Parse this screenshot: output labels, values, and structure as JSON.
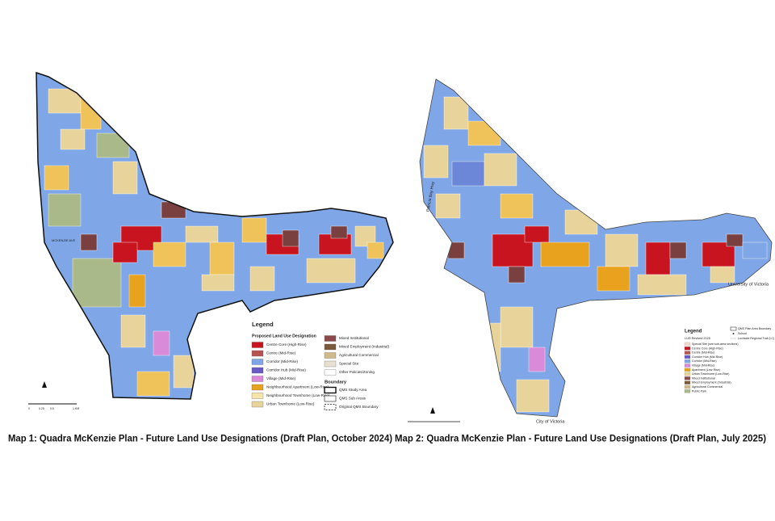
{
  "maps": [
    {
      "legend": {
        "title": "Legend",
        "heading": "Proposed Land Use Designation",
        "items": [
          "Centre Core (High-Rise)",
          "Centre (Mid-Rise)",
          "Corridor (Mid-Rise)",
          "Corridor Hub (Mid-Rise)",
          "Village (Mid-Rise)",
          "Neighbourhood Apartment (Low-Rise)",
          "Neighbourhood Townhome (Low-Rise)",
          "Urban Townhome (Low-Rise)"
        ],
        "items_2": [
          "Mixed Institutional",
          "Mixed Employment (Industrial)",
          "Agricultural Commercial",
          "Special Site",
          "Other Policies/Zoning"
        ],
        "boundary_heading": "Boundary",
        "boundary_items": [
          "QMS Study Area",
          "QMS Sub Areas",
          "Original QMS Boundary"
        ]
      },
      "scale_labels": [
        "0",
        "0.25",
        "0.5",
        "1 KM"
      ],
      "street_labels": [
        "MCKENZIE AVE"
      ],
      "caption": "Map 1: Quadra McKenzie Plan - Future Land Use Designations (Draft Plan, October 2024)"
    },
    {
      "legend": {
        "title": "Legend",
        "heading": "LUD Revised 2025",
        "items": [
          "Special Site (see sub-area sections)",
          "Centre Core (High-Rise)",
          "Centre (Mid-Rise)",
          "Corridor Hub (Mid-Rise)",
          "Corridor (Mid-Rise)",
          "Village (Mid-Rise)",
          "Apartment (Low-Rise)",
          "Urban Townhome (Low-Rise)",
          "Mixed Institutional",
          "Mixed Employment (Industrial)",
          "Agricultural Commercial",
          "Public Park"
        ],
        "boundary_items": [
          "QMS Plan Area Boundary",
          "School",
          "Lochside Regional Trail (LC)"
        ]
      },
      "street_labels": [
        "Patricia Bay Hwy",
        "University of Victoria",
        "City of Victoria"
      ],
      "caption": "Map 2: Quadra McKenzie Plan - Future Land Use Designations (Draft Plan, July 2025)"
    }
  ]
}
